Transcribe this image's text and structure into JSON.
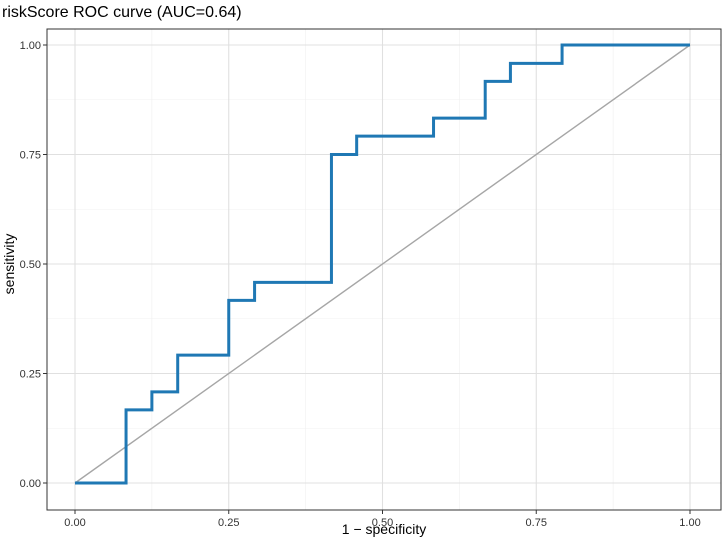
{
  "colors": {
    "roc_line": "#1f78b4",
    "diagonal": "#a6a6a6",
    "grid_major": "#e0e0e0",
    "grid_minor": "#f0f0f0",
    "panel_border": "#333333",
    "background": "#ffffff"
  },
  "chart_data": {
    "type": "line",
    "title": "riskScore ROC curve (AUC=0.64)",
    "xlabel": "1 − specificity",
    "ylabel": "sensitivity",
    "xlim": [
      0,
      1
    ],
    "ylim": [
      0,
      1
    ],
    "grid": true,
    "legend": "none",
    "x_ticks": [
      {
        "value": 0,
        "label": "0.00"
      },
      {
        "value": 0.25,
        "label": "0.25"
      },
      {
        "value": 0.5,
        "label": "0.50"
      },
      {
        "value": 0.75,
        "label": "0.75"
      },
      {
        "value": 1,
        "label": "1.00"
      }
    ],
    "y_ticks": [
      {
        "value": 0,
        "label": "0.00"
      },
      {
        "value": 0.25,
        "label": "0.25"
      },
      {
        "value": 0.5,
        "label": "0.50"
      },
      {
        "value": 0.75,
        "label": "0.75"
      },
      {
        "value": 1,
        "label": "1.00"
      }
    ],
    "series": [
      {
        "x": [
          0,
          0.083,
          0.083,
          0.125,
          0.125,
          0.167,
          0.167,
          0.25,
          0.25,
          0.292,
          0.292,
          0.417,
          0.417,
          0.458,
          0.458,
          0.583,
          0.583,
          0.667,
          0.667,
          0.708,
          0.708,
          0.792,
          0.792,
          1
        ],
        "y": [
          0,
          0,
          0.167,
          0.167,
          0.208,
          0.208,
          0.292,
          0.292,
          0.417,
          0.417,
          0.458,
          0.458,
          0.75,
          0.75,
          0.792,
          0.792,
          0.833,
          0.833,
          0.917,
          0.917,
          0.958,
          0.958,
          1,
          1
        ]
      }
    ],
    "reference_line": {
      "x": [
        0,
        1
      ],
      "y": [
        0,
        1
      ]
    }
  }
}
